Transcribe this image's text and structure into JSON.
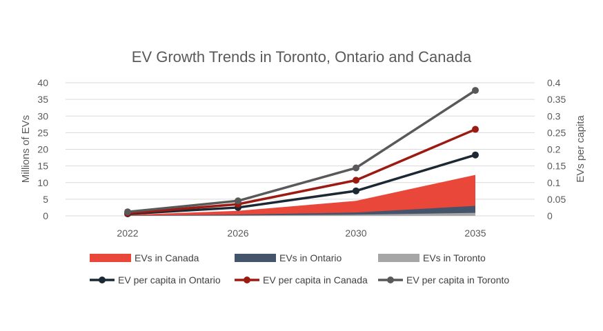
{
  "chart_data": {
    "type": "area",
    "title": "EV Growth Trends in Toronto, Ontario and Canada",
    "x": [
      "2022",
      "2026",
      "2030",
      "2035"
    ],
    "y_left": {
      "label": "Millions of EVs",
      "ylim": [
        0,
        40
      ],
      "ticks": [
        "0",
        "5",
        "10",
        "15",
        "20",
        "25",
        "30",
        "35",
        "40"
      ]
    },
    "y_right": {
      "label": "EVs per capita",
      "ylim": [
        0,
        0.4
      ],
      "ticks": [
        "0",
        "0.05",
        "0.1",
        "0.15",
        "0.2",
        "0.25",
        "0.3",
        "0.35",
        "0.4"
      ]
    },
    "area_series": [
      {
        "name": "EVs in Canada",
        "axis": "left",
        "color": "#e8473a",
        "values": [
          0.3,
          1.5,
          4.5,
          12.3
        ]
      },
      {
        "name": "EVs in Ontario",
        "axis": "left",
        "color": "#44546a",
        "values": [
          0.1,
          0.4,
          1.0,
          3.0
        ]
      },
      {
        "name": "EVs in Toronto",
        "axis": "left",
        "color": "#a6a6a6",
        "values": [
          0.03,
          0.12,
          0.35,
          0.9
        ]
      }
    ],
    "line_series": [
      {
        "name": "EV per capita in Ontario",
        "axis": "right",
        "color": "#1c2833",
        "values": [
          0.006,
          0.025,
          0.075,
          0.183
        ]
      },
      {
        "name": "EV per capita in Canada",
        "axis": "right",
        "color": "#9b1b12",
        "values": [
          0.008,
          0.035,
          0.107,
          0.26
        ]
      },
      {
        "name": "EV per capita in Toronto",
        "axis": "right",
        "color": "#595959",
        "values": [
          0.012,
          0.045,
          0.144,
          0.377
        ]
      }
    ],
    "grid": true,
    "legend_position": "bottom"
  }
}
